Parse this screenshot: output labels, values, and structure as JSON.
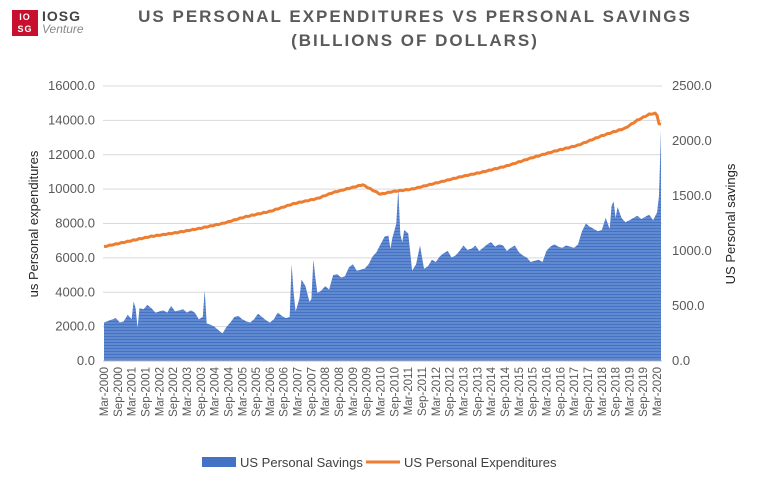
{
  "logo": {
    "box_text": "IO SG",
    "main": "IOSG",
    "sub": "Venture"
  },
  "chart_data": {
    "type": "bar+line",
    "title": "US PERSONAL EXPENDITURES VS PERSONAL SAVINGS",
    "subtitle": "(BILLIONS OF DOLLARS)",
    "left_axis": {
      "label": "us Personal expenditures",
      "ylim": [
        0,
        16000
      ],
      "ticks": [
        "0.0",
        "2000.0",
        "4000.0",
        "6000.0",
        "8000.0",
        "10000.0",
        "12000.0",
        "14000.0",
        "16000.0"
      ]
    },
    "right_axis": {
      "label": "US Personal savings",
      "ylim": [
        0,
        2500
      ],
      "ticks": [
        "0.0",
        "500.0",
        "1000.0",
        "1500.0",
        "2000.0",
        "2500.0"
      ]
    },
    "x_tick_labels": [
      "Mar-2000",
      "Sep-2000",
      "Mar-2001",
      "Sep-2001",
      "Mar-2002",
      "Sep-2002",
      "Mar-2003",
      "Sep-2003",
      "Mar-2004",
      "Sep-2004",
      "Mar-2005",
      "Sep-2005",
      "Mar-2006",
      "Sep-2006",
      "Mar-2007",
      "Sep-2007",
      "Mar-2008",
      "Sep-2008",
      "Mar-2009",
      "Sep-2009",
      "Mar-2010",
      "Sep-2010",
      "Mar-2011",
      "Sep-2011",
      "Mar-2012",
      "Sep-2012",
      "Mar-2013",
      "Sep-2013",
      "Mar-2014",
      "Sep-2014",
      "Mar-2015",
      "Sep-2015",
      "Mar-2016",
      "Sep-2016",
      "Mar-2017",
      "Sep-2017",
      "Mar-2018",
      "Sep-2018",
      "Mar-2019",
      "Sep-2019",
      "Mar-2020"
    ],
    "series": [
      {
        "name": "US Personal Savings",
        "axis": "right",
        "kind": "area",
        "color": "#4472c4",
        "anchors": [
          [
            0,
            350
          ],
          [
            3,
            370
          ],
          [
            6,
            390
          ],
          [
            8,
            350
          ],
          [
            10,
            360
          ],
          [
            12,
            420
          ],
          [
            14,
            380
          ],
          [
            15,
            540
          ],
          [
            16,
            480
          ],
          [
            17,
            300
          ],
          [
            18,
            480
          ],
          [
            20,
            470
          ],
          [
            22,
            510
          ],
          [
            24,
            480
          ],
          [
            26,
            440
          ],
          [
            28,
            450
          ],
          [
            30,
            460
          ],
          [
            32,
            440
          ],
          [
            34,
            500
          ],
          [
            36,
            450
          ],
          [
            38,
            460
          ],
          [
            40,
            470
          ],
          [
            42,
            440
          ],
          [
            44,
            460
          ],
          [
            46,
            440
          ],
          [
            48,
            380
          ],
          [
            50,
            400
          ],
          [
            51,
            640
          ],
          [
            52,
            340
          ],
          [
            54,
            330
          ],
          [
            56,
            310
          ],
          [
            58,
            280
          ],
          [
            60,
            250
          ],
          [
            62,
            310
          ],
          [
            64,
            350
          ],
          [
            66,
            400
          ],
          [
            68,
            410
          ],
          [
            70,
            380
          ],
          [
            72,
            360
          ],
          [
            74,
            350
          ],
          [
            76,
            380
          ],
          [
            78,
            430
          ],
          [
            80,
            400
          ],
          [
            82,
            370
          ],
          [
            84,
            350
          ],
          [
            86,
            380
          ],
          [
            88,
            440
          ],
          [
            90,
            410
          ],
          [
            92,
            390
          ],
          [
            94,
            400
          ],
          [
            95,
            880
          ],
          [
            96,
            620
          ],
          [
            97,
            450
          ],
          [
            99,
            570
          ],
          [
            100,
            740
          ],
          [
            102,
            680
          ],
          [
            104,
            540
          ],
          [
            105,
            560
          ],
          [
            106,
            920
          ],
          [
            107,
            760
          ],
          [
            108,
            620
          ],
          [
            110,
            640
          ],
          [
            112,
            680
          ],
          [
            114,
            650
          ],
          [
            116,
            780
          ],
          [
            118,
            790
          ],
          [
            120,
            760
          ],
          [
            122,
            770
          ],
          [
            124,
            850
          ],
          [
            126,
            880
          ],
          [
            128,
            820
          ],
          [
            130,
            830
          ],
          [
            132,
            840
          ],
          [
            134,
            880
          ],
          [
            136,
            950
          ],
          [
            138,
            990
          ],
          [
            140,
            1060
          ],
          [
            142,
            1130
          ],
          [
            144,
            1140
          ],
          [
            145,
            1020
          ],
          [
            146,
            1120
          ],
          [
            148,
            1250
          ],
          [
            149,
            1560
          ],
          [
            150,
            1150
          ],
          [
            151,
            1080
          ],
          [
            152,
            1190
          ],
          [
            154,
            1160
          ],
          [
            156,
            820
          ],
          [
            158,
            880
          ],
          [
            160,
            1050
          ],
          [
            162,
            840
          ],
          [
            164,
            860
          ],
          [
            166,
            920
          ],
          [
            168,
            900
          ],
          [
            170,
            950
          ],
          [
            172,
            980
          ],
          [
            174,
            1000
          ],
          [
            176,
            940
          ],
          [
            178,
            960
          ],
          [
            180,
            1000
          ],
          [
            182,
            1050
          ],
          [
            184,
            1010
          ],
          [
            186,
            1020
          ],
          [
            188,
            1050
          ],
          [
            190,
            1000
          ],
          [
            192,
            1030
          ],
          [
            194,
            1060
          ],
          [
            196,
            1080
          ],
          [
            198,
            1040
          ],
          [
            200,
            1060
          ],
          [
            202,
            1050
          ],
          [
            204,
            1000
          ],
          [
            206,
            1030
          ],
          [
            208,
            1050
          ],
          [
            210,
            990
          ],
          [
            212,
            960
          ],
          [
            214,
            940
          ],
          [
            216,
            900
          ],
          [
            218,
            910
          ],
          [
            220,
            920
          ],
          [
            222,
            900
          ],
          [
            224,
            1000
          ],
          [
            226,
            1040
          ],
          [
            228,
            1060
          ],
          [
            230,
            1040
          ],
          [
            232,
            1030
          ],
          [
            234,
            1050
          ],
          [
            236,
            1040
          ],
          [
            238,
            1030
          ],
          [
            240,
            1060
          ],
          [
            242,
            1180
          ],
          [
            244,
            1250
          ],
          [
            246,
            1220
          ],
          [
            248,
            1200
          ],
          [
            250,
            1180
          ],
          [
            252,
            1190
          ],
          [
            254,
            1300
          ],
          [
            256,
            1200
          ],
          [
            257,
            1410
          ],
          [
            258,
            1450
          ],
          [
            259,
            1300
          ],
          [
            260,
            1400
          ],
          [
            262,
            1300
          ],
          [
            264,
            1260
          ],
          [
            266,
            1280
          ],
          [
            268,
            1300
          ],
          [
            270,
            1320
          ],
          [
            272,
            1290
          ],
          [
            274,
            1310
          ],
          [
            276,
            1330
          ],
          [
            278,
            1280
          ],
          [
            280,
            1350
          ],
          [
            281,
            1500
          ],
          [
            282,
            2100
          ]
        ]
      },
      {
        "name": "US Personal Expenditures",
        "axis": "left",
        "kind": "line",
        "color": "#ed7d31",
        "anchors": [
          [
            0,
            6650
          ],
          [
            12,
            6950
          ],
          [
            24,
            7250
          ],
          [
            36,
            7450
          ],
          [
            48,
            7700
          ],
          [
            60,
            8000
          ],
          [
            72,
            8400
          ],
          [
            84,
            8700
          ],
          [
            96,
            9150
          ],
          [
            108,
            9450
          ],
          [
            116,
            9800
          ],
          [
            126,
            10100
          ],
          [
            131,
            10250
          ],
          [
            135,
            10000
          ],
          [
            140,
            9700
          ],
          [
            146,
            9850
          ],
          [
            156,
            10000
          ],
          [
            168,
            10350
          ],
          [
            180,
            10700
          ],
          [
            192,
            11000
          ],
          [
            204,
            11350
          ],
          [
            216,
            11800
          ],
          [
            228,
            12200
          ],
          [
            240,
            12550
          ],
          [
            252,
            13100
          ],
          [
            264,
            13550
          ],
          [
            270,
            14000
          ],
          [
            276,
            14350
          ],
          [
            279,
            14400
          ],
          [
            280,
            14300
          ],
          [
            281,
            13800
          ],
          [
            282,
            13750
          ]
        ]
      }
    ],
    "legend": {
      "placement": "bottom",
      "entries": [
        "US Personal Savings",
        "US Personal Expenditures"
      ]
    }
  }
}
